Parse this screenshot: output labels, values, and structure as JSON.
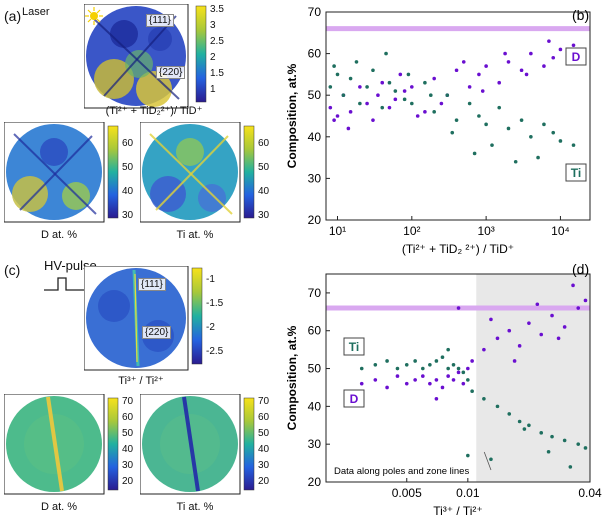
{
  "panels": {
    "a": {
      "label": "(a)",
      "laser_label": "Laser",
      "pole_111": "{111}",
      "pole_220": "{220}",
      "ratio_caption": "(Ti²⁺ + TiD₂²⁺)/ TiD⁺",
      "ratio_colorbar_ticks": [
        "3.5",
        "3",
        "2.5",
        "2",
        "1.5",
        "1"
      ],
      "d_caption": "D at. %",
      "d_colorbar_ticks": [
        "60",
        "50",
        "40",
        "30"
      ],
      "ti_caption": "Ti at. %",
      "ti_colorbar_ticks": [
        "60",
        "50",
        "40",
        "30"
      ]
    },
    "c": {
      "label": "(c)",
      "pulse_label": "HV-pulse",
      "pole_111": "{111}",
      "pole_220": "{220}",
      "ratio_caption": "Ti³⁺ / Ti²⁺",
      "ratio_colorbar_ticks": [
        "-1",
        "-1.5",
        "-2",
        "-2.5"
      ],
      "d_caption": "D at. %",
      "d_colorbar_ticks": [
        "70",
        "60",
        "50",
        "40",
        "30",
        "20"
      ],
      "ti_caption": "Ti at. %",
      "ti_colorbar_ticks": [
        "70",
        "60",
        "50",
        "40",
        "30",
        "20"
      ]
    }
  },
  "colors": {
    "d_series": "#6a0fd0",
    "ti_series": "#1f6f5f",
    "reference_line": "#d9a8f0",
    "shade": "#e8e8e8"
  },
  "chart_data": [
    {
      "panel": "(b)",
      "type": "scatter",
      "xscale": "log",
      "xlabel": "(Ti²⁺ + TiD₂ ²⁺) / TiD⁺",
      "ylabel": "Composition, at.%",
      "xlim": [
        7,
        25000
      ],
      "ylim": [
        20,
        70
      ],
      "xticks": [
        10,
        100,
        1000,
        10000
      ],
      "xtick_labels": [
        "10¹",
        "10²",
        "10³",
        "10⁴"
      ],
      "yticks": [
        20,
        30,
        40,
        50,
        60,
        70
      ],
      "reference_line_y": 66,
      "series": [
        {
          "name": "D",
          "legend_label": "D",
          "x": [
            8,
            10,
            12,
            15,
            20,
            25,
            30,
            40,
            50,
            60,
            80,
            100,
            150,
            200,
            300,
            400,
            600,
            800,
            1000,
            1500,
            2000,
            3000,
            4000,
            6000,
            8000,
            10000,
            15000,
            9,
            14,
            35,
            70,
            120,
            250,
            500,
            900,
            1800,
            3500,
            7000
          ],
          "y": [
            47,
            45,
            50,
            46,
            52,
            48,
            44,
            53,
            47,
            49,
            51,
            52,
            46,
            54,
            50,
            56,
            52,
            55,
            57,
            53,
            58,
            56,
            60,
            57,
            59,
            61,
            62,
            44,
            42,
            50,
            55,
            45,
            48,
            58,
            51,
            60,
            55,
            63
          ]
        },
        {
          "name": "Ti",
          "legend_label": "Ti",
          "x": [
            8,
            10,
            12,
            15,
            20,
            25,
            30,
            40,
            50,
            60,
            80,
            100,
            150,
            200,
            300,
            400,
            600,
            800,
            1000,
            1500,
            2000,
            3000,
            4000,
            6000,
            8000,
            10000,
            15000,
            9,
            18,
            45,
            90,
            180,
            350,
            700,
            1200,
            2500,
            5000
          ],
          "y": [
            52,
            55,
            50,
            54,
            48,
            52,
            56,
            47,
            53,
            51,
            49,
            48,
            53,
            46,
            50,
            44,
            48,
            45,
            43,
            47,
            42,
            44,
            40,
            43,
            41,
            39,
            38,
            57,
            58,
            60,
            55,
            50,
            41,
            36,
            38,
            34,
            35
          ]
        }
      ]
    },
    {
      "panel": "(d)",
      "type": "scatter",
      "xscale": "log",
      "xlabel": "Ti³⁺ / Ti²⁺",
      "ylabel": "Composition, at.%",
      "xlim": [
        0.002,
        0.04
      ],
      "ylim": [
        20,
        75
      ],
      "xticks": [
        0.005,
        0.01,
        0.04
      ],
      "xtick_labels": [
        "0.005",
        "0.01",
        "0.04"
      ],
      "yticks": [
        20,
        30,
        40,
        50,
        60,
        70
      ],
      "reference_line_y": 66,
      "shaded_region_x": [
        0.011,
        0.04
      ],
      "annotation": "Data along poles and zone lines",
      "series": [
        {
          "name": "D",
          "legend_label": "D",
          "x": [
            0.003,
            0.0035,
            0.004,
            0.0045,
            0.005,
            0.0055,
            0.006,
            0.0065,
            0.007,
            0.0075,
            0.008,
            0.0085,
            0.009,
            0.0095,
            0.01,
            0.0105,
            0.012,
            0.014,
            0.016,
            0.018,
            0.02,
            0.023,
            0.026,
            0.03,
            0.035,
            0.038,
            0.007,
            0.009,
            0.013,
            0.017,
            0.022,
            0.028,
            0.033
          ],
          "y": [
            46,
            47,
            45,
            48,
            46,
            47,
            48,
            46,
            47,
            45,
            48,
            47,
            49,
            46,
            50,
            52,
            55,
            58,
            60,
            56,
            62,
            59,
            64,
            61,
            66,
            68,
            42,
            66,
            63,
            52,
            67,
            58,
            72
          ]
        },
        {
          "name": "Ti",
          "legend_label": "Ti",
          "x": [
            0.003,
            0.0035,
            0.004,
            0.0045,
            0.005,
            0.0055,
            0.006,
            0.0065,
            0.007,
            0.0075,
            0.008,
            0.0085,
            0.009,
            0.0095,
            0.01,
            0.0105,
            0.012,
            0.014,
            0.016,
            0.018,
            0.02,
            0.023,
            0.026,
            0.03,
            0.035,
            0.038,
            0.008,
            0.01,
            0.013,
            0.019,
            0.025,
            0.032
          ],
          "y": [
            50,
            51,
            52,
            50,
            51,
            52,
            50,
            51,
            52,
            53,
            50,
            51,
            50,
            49,
            47,
            44,
            42,
            40,
            38,
            36,
            35,
            33,
            32,
            31,
            30,
            29,
            55,
            27,
            26,
            34,
            28,
            24
          ]
        }
      ]
    }
  ]
}
